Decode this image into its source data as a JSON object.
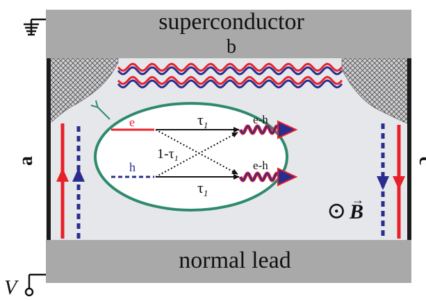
{
  "labels": {
    "superconductor": "superconductor",
    "b": "b",
    "a": "a",
    "c": "c",
    "normal_lead": "normal lead",
    "voltage": "V",
    "electron": "e",
    "hole": "h",
    "tau_top": "τ",
    "tau_top_sub": "1",
    "tau_bottom": "τ",
    "tau_bottom_sub": "1",
    "one_minus_tau": "1-τ",
    "one_minus_tau_sub": "1",
    "eh_top": "e-h",
    "eh_bottom": "e-h",
    "field_symbol": "⊙",
    "field_B": "B",
    "field_vec": "→"
  },
  "colors": {
    "electron": "#e8202a",
    "hole": "#2b2d8e",
    "ellipse": "#2e8a6c",
    "region_gray": "#a9a9a9",
    "sample_bg": "#e6e7ea"
  }
}
